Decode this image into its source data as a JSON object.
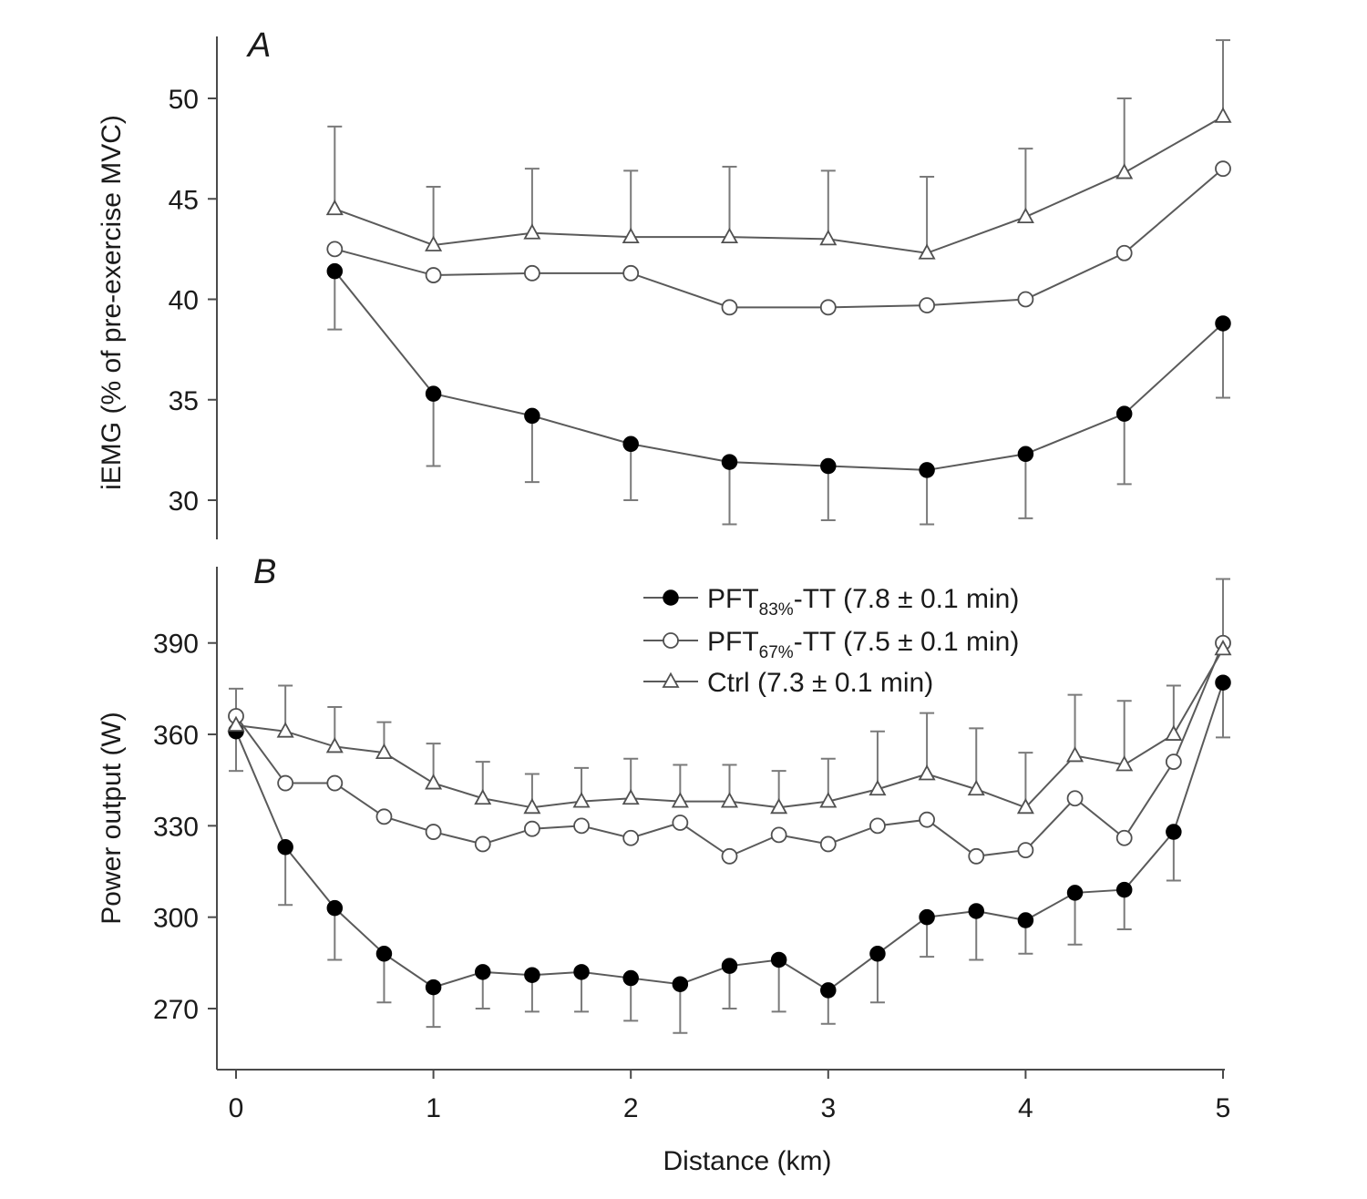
{
  "chart_data": [
    {
      "panel": "A",
      "type": "line",
      "xlabel": "",
      "ylabel": "iEMG (% of pre-exercise MVC)",
      "ylim": [
        28,
        52.5
      ],
      "yticks": [
        30,
        35,
        40,
        45,
        50
      ],
      "xlim": [
        -0.1,
        5.05
      ],
      "series": [
        {
          "name": "PFT83%-TT",
          "marker": "filled-circle",
          "x": [
            0.5,
            1,
            1.5,
            2,
            2.5,
            3,
            3.5,
            4,
            4.5,
            5
          ],
          "y": [
            41.4,
            35.3,
            34.2,
            32.8,
            31.9,
            31.7,
            31.5,
            32.3,
            34.3,
            38.8
          ],
          "error_direction": "down",
          "error": [
            2.9,
            3.6,
            3.3,
            2.8,
            3.1,
            2.7,
            2.7,
            3.2,
            3.5,
            3.7
          ]
        },
        {
          "name": "PFT67%-TT",
          "marker": "open-circle",
          "x": [
            0.5,
            1,
            1.5,
            2,
            2.5,
            3,
            3.5,
            4,
            4.5,
            5
          ],
          "y": [
            42.5,
            41.2,
            41.3,
            41.3,
            39.6,
            39.6,
            39.7,
            40.0,
            42.3,
            46.5
          ]
        },
        {
          "name": "Ctrl",
          "marker": "open-triangle",
          "x": [
            0.5,
            1,
            1.5,
            2,
            2.5,
            3,
            3.5,
            4,
            4.5,
            5
          ],
          "y": [
            44.5,
            42.7,
            43.3,
            43.1,
            43.1,
            43.0,
            42.3,
            44.1,
            46.3,
            49.1
          ],
          "error_direction": "up",
          "error": [
            4.1,
            2.9,
            3.2,
            3.3,
            3.5,
            3.4,
            3.8,
            3.4,
            3.7,
            3.8
          ]
        }
      ]
    },
    {
      "panel": "B",
      "type": "line",
      "xlabel": "Distance (km)",
      "ylabel": "Power output (W)",
      "ylim": [
        250,
        415
      ],
      "yticks": [
        270,
        300,
        330,
        360,
        390
      ],
      "xlim": [
        -0.1,
        5.05
      ],
      "xticks": [
        0,
        1,
        2,
        3,
        4,
        5
      ],
      "series": [
        {
          "name": "PFT83%-TT",
          "marker": "filled-circle",
          "x": [
            0,
            0.25,
            0.5,
            0.75,
            1,
            1.25,
            1.5,
            1.75,
            2,
            2.25,
            2.5,
            2.75,
            3,
            3.25,
            3.5,
            3.75,
            4,
            4.25,
            4.5,
            4.75,
            5
          ],
          "y": [
            361,
            323,
            303,
            288,
            277,
            282,
            281,
            282,
            280,
            278,
            284,
            286,
            276,
            288,
            300,
            302,
            299,
            308,
            309,
            328,
            377
          ],
          "error_direction": "down",
          "error": [
            13,
            19,
            17,
            16,
            13,
            12,
            12,
            13,
            14,
            16,
            14,
            17,
            11,
            16,
            13,
            16,
            11,
            17,
            13,
            16,
            18
          ]
        },
        {
          "name": "PFT67%-TT",
          "marker": "open-circle",
          "x": [
            0,
            0.25,
            0.5,
            0.75,
            1,
            1.25,
            1.5,
            1.75,
            2,
            2.25,
            2.5,
            2.75,
            3,
            3.25,
            3.5,
            3.75,
            4,
            4.25,
            4.5,
            4.75,
            5
          ],
          "y": [
            366,
            344,
            344,
            333,
            328,
            324,
            329,
            330,
            326,
            331,
            320,
            327,
            324,
            330,
            332,
            320,
            322,
            339,
            326,
            351,
            390
          ]
        },
        {
          "name": "Ctrl",
          "marker": "open-triangle",
          "x": [
            0,
            0.25,
            0.5,
            0.75,
            1,
            1.25,
            1.5,
            1.75,
            2,
            2.25,
            2.5,
            2.75,
            3,
            3.25,
            3.5,
            3.75,
            4,
            4.25,
            4.5,
            4.75,
            5
          ],
          "y": [
            363,
            361,
            356,
            354,
            344,
            339,
            336,
            338,
            339,
            338,
            338,
            336,
            338,
            342,
            347,
            342,
            336,
            353,
            350,
            360,
            388
          ],
          "error_direction": "up",
          "error": [
            12,
            15,
            13,
            10,
            13,
            12,
            11,
            11,
            13,
            12,
            12,
            12,
            14,
            19,
            20,
            20,
            18,
            20,
            21,
            16,
            23
          ]
        }
      ]
    }
  ],
  "panel_a_label": "A",
  "panel_b_label": "B",
  "legend": [
    {
      "marker": "filled-circle",
      "prefix": "PFT",
      "sub": "83%",
      "suffix": "-TT (7.8 ± 0.1 min)"
    },
    {
      "marker": "open-circle",
      "prefix": "PFT",
      "sub": "67%",
      "suffix": "-TT (7.5 ± 0.1 min)"
    },
    {
      "marker": "open-triangle",
      "prefix": "",
      "sub": "",
      "suffix": "Ctrl (7.3 ± 0.1 min)"
    }
  ],
  "colors": {
    "axis": "#4a4a4a",
    "line": "#5a5a5a",
    "error_bar": "#7a7a7a",
    "marker_fill_filled": "#000000",
    "marker_fill_open": "#ffffff",
    "marker_stroke": "#505050"
  }
}
